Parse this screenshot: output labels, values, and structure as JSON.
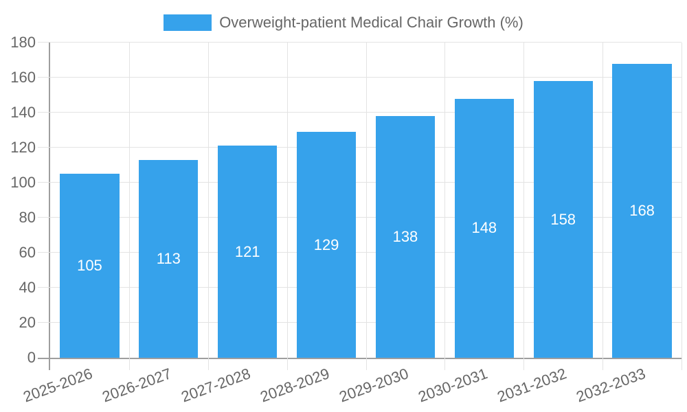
{
  "chart_data": {
    "type": "bar",
    "title": "",
    "legend_position": "top",
    "categories": [
      "2025-2026",
      "2026-2027",
      "2027-2028",
      "2028-2029",
      "2029-2030",
      "2030-2031",
      "2031-2032",
      "2032-2033"
    ],
    "series": [
      {
        "name": "Overweight-patient Medical Chair Growth (%)",
        "values": [
          105,
          113,
          121,
          129,
          138,
          148,
          158,
          168
        ]
      }
    ],
    "data_labels": [
      "105",
      "113",
      "121",
      "129",
      "138",
      "148",
      "158",
      "168"
    ],
    "ytick_labels": [
      "0",
      "20",
      "40",
      "60",
      "80",
      "100",
      "120",
      "140",
      "160",
      "180"
    ],
    "ylim": [
      0,
      180
    ],
    "ytick_step": 20,
    "grid": true,
    "xlabel": "",
    "ylabel": "",
    "colors": {
      "bar": "#36A2EB",
      "grid": "#E3E3E3",
      "axis": "#9E9E9E",
      "tick_text": "#666666",
      "bar_label": "#FFFFFF",
      "background": "#FFFFFF"
    }
  }
}
